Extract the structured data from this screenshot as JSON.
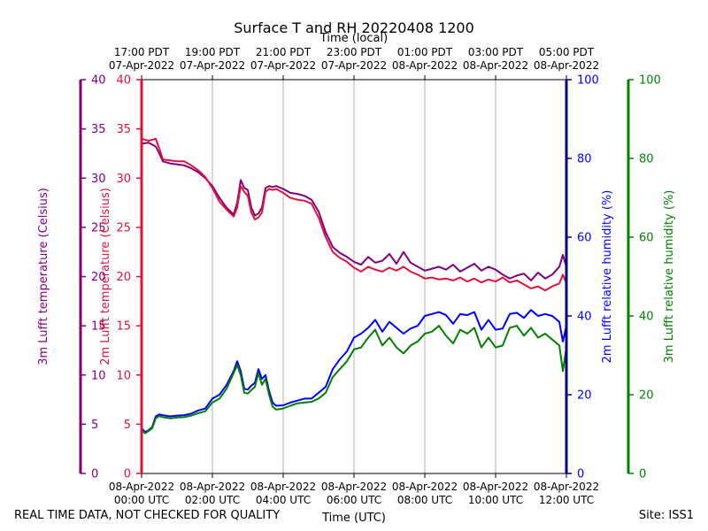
{
  "chart_data": {
    "type": "line",
    "title": "Surface T and RH 20220408 1200",
    "top_axis_label": "Time (local)",
    "xlabel": "Time (UTC)",
    "bottom_ticks": [
      {
        "l1": "08-Apr-2022",
        "l2": "00:00 UTC",
        "h": 0
      },
      {
        "l1": "08-Apr-2022",
        "l2": "02:00 UTC",
        "h": 2
      },
      {
        "l1": "08-Apr-2022",
        "l2": "04:00 UTC",
        "h": 4
      },
      {
        "l1": "08-Apr-2022",
        "l2": "06:00 UTC",
        "h": 6
      },
      {
        "l1": "08-Apr-2022",
        "l2": "08:00 UTC",
        "h": 8
      },
      {
        "l1": "08-Apr-2022",
        "l2": "10:00 UTC",
        "h": 10
      },
      {
        "l1": "08-Apr-2022",
        "l2": "12:00 UTC",
        "h": 12
      }
    ],
    "top_ticks": [
      {
        "l1": "17:00 PDT",
        "l2": "07-Apr-2022",
        "h": 0
      },
      {
        "l1": "19:00 PDT",
        "l2": "07-Apr-2022",
        "h": 2
      },
      {
        "l1": "21:00 PDT",
        "l2": "07-Apr-2022",
        "h": 4
      },
      {
        "l1": "23:00 PDT",
        "l2": "07-Apr-2022",
        "h": 6
      },
      {
        "l1": "01:00 PDT",
        "l2": "08-Apr-2022",
        "h": 8
      },
      {
        "l1": "03:00 PDT",
        "l2": "08-Apr-2022",
        "h": 10
      },
      {
        "l1": "05:00 PDT",
        "l2": "08-Apr-2022",
        "h": 12
      }
    ],
    "xlim": [
      0,
      12
    ],
    "axes": {
      "temp3m": {
        "label": "3m Lufft temperature (Celsius)",
        "color": "#800080",
        "ylim": [
          0,
          40
        ],
        "ticks": [
          0,
          5,
          10,
          15,
          20,
          25,
          30,
          35,
          40
        ]
      },
      "temp2m": {
        "label": "2m Lufft temperature (Celsius)",
        "color": "#dc143c",
        "ylim": [
          0,
          40
        ],
        "ticks": [
          0,
          5,
          10,
          15,
          20,
          25,
          30,
          35,
          40
        ]
      },
      "rh2m": {
        "label": "2m Lufft relative humidity (%)",
        "color": "#0000ff",
        "spine_color": "#000080",
        "ylim": [
          0,
          100
        ],
        "ticks": [
          0,
          20,
          40,
          60,
          80,
          100
        ]
      },
      "rh3m": {
        "label": "3m Lufft relative humidity (%)",
        "color": "#008000",
        "ylim": [
          0,
          100
        ],
        "ticks": [
          0,
          20,
          40,
          60,
          80,
          100
        ]
      }
    },
    "series": [
      {
        "name": "3m Lufft temperature",
        "axis": "temp3m",
        "color": "#800080",
        "x": [
          0,
          0.2,
          0.4,
          0.5,
          0.6,
          0.8,
          1.0,
          1.2,
          1.4,
          1.6,
          1.8,
          2.0,
          2.2,
          2.4,
          2.6,
          2.7,
          2.8,
          2.9,
          3.0,
          3.1,
          3.2,
          3.3,
          3.4,
          3.5,
          3.6,
          3.7,
          3.8,
          4.0,
          4.2,
          4.4,
          4.6,
          4.8,
          5.0,
          5.2,
          5.4,
          5.6,
          5.8,
          6.0,
          6.2,
          6.4,
          6.6,
          6.8,
          7.0,
          7.2,
          7.4,
          7.6,
          7.8,
          8.0,
          8.2,
          8.4,
          8.6,
          8.8,
          9.0,
          9.2,
          9.4,
          9.6,
          9.8,
          10.0,
          10.2,
          10.4,
          10.6,
          10.8,
          11.0,
          11.2,
          11.4,
          11.6,
          11.8,
          11.9,
          12.0
        ],
        "y": [
          33.5,
          33.6,
          33.2,
          32.5,
          31.7,
          31.5,
          31.4,
          31.3,
          31.0,
          30.6,
          30.0,
          29.2,
          28.0,
          27.0,
          26.3,
          27.5,
          29.8,
          29.0,
          28.8,
          27.0,
          26.2,
          26.4,
          27.0,
          29.0,
          29.2,
          29.1,
          29.2,
          28.9,
          28.5,
          28.4,
          28.2,
          27.8,
          26.6,
          24.5,
          23.0,
          22.4,
          22.0,
          21.5,
          21.2,
          22.0,
          21.4,
          21.6,
          22.3,
          21.3,
          22.5,
          21.4,
          21.0,
          20.6,
          20.8,
          21.0,
          20.7,
          21.2,
          20.5,
          20.9,
          21.3,
          20.6,
          21.0,
          20.7,
          20.2,
          19.8,
          20.1,
          20.3,
          19.6,
          20.4,
          19.8,
          20.2,
          21.0,
          22.2,
          21.0
        ]
      },
      {
        "name": "2m Lufft temperature",
        "axis": "temp2m",
        "color": "#dc143c",
        "x": [
          0,
          0.2,
          0.4,
          0.5,
          0.6,
          0.8,
          1.0,
          1.2,
          1.4,
          1.6,
          1.8,
          2.0,
          2.2,
          2.4,
          2.6,
          2.7,
          2.8,
          2.9,
          3.0,
          3.1,
          3.2,
          3.3,
          3.4,
          3.5,
          3.6,
          3.7,
          3.8,
          4.0,
          4.2,
          4.4,
          4.6,
          4.8,
          5.0,
          5.2,
          5.4,
          5.6,
          5.8,
          6.0,
          6.2,
          6.4,
          6.6,
          6.8,
          7.0,
          7.2,
          7.4,
          7.6,
          7.8,
          8.0,
          8.2,
          8.4,
          8.6,
          8.8,
          9.0,
          9.2,
          9.4,
          9.6,
          9.8,
          10.0,
          10.2,
          10.4,
          10.6,
          10.8,
          11.0,
          11.2,
          11.4,
          11.6,
          11.8,
          11.9,
          12.0
        ],
        "y": [
          34.0,
          33.8,
          34.0,
          33.0,
          31.9,
          31.8,
          31.7,
          31.7,
          31.3,
          30.8,
          30.1,
          29.0,
          27.6,
          26.8,
          26.1,
          27.0,
          29.2,
          28.6,
          28.2,
          26.5,
          25.8,
          26.0,
          26.5,
          28.6,
          28.9,
          28.8,
          28.9,
          28.5,
          28.0,
          27.8,
          27.7,
          27.4,
          26.0,
          24.0,
          22.5,
          21.9,
          21.5,
          20.9,
          20.5,
          21.0,
          20.7,
          20.5,
          20.9,
          20.6,
          21.0,
          20.5,
          20.2,
          19.8,
          19.9,
          19.7,
          19.8,
          19.6,
          19.9,
          19.5,
          19.8,
          19.4,
          19.7,
          19.5,
          19.9,
          19.4,
          19.6,
          19.2,
          18.8,
          19.0,
          18.6,
          19.0,
          19.3,
          20.2,
          19.3
        ]
      },
      {
        "name": "2m Lufft relative humidity",
        "axis": "rh2m",
        "color": "#0000ff",
        "x": [
          0,
          0.1,
          0.2,
          0.3,
          0.4,
          0.5,
          0.6,
          0.8,
          1.0,
          1.2,
          1.4,
          1.6,
          1.8,
          2.0,
          2.2,
          2.4,
          2.6,
          2.7,
          2.8,
          2.9,
          3.0,
          3.1,
          3.2,
          3.3,
          3.4,
          3.5,
          3.6,
          3.7,
          3.8,
          4.0,
          4.2,
          4.4,
          4.6,
          4.8,
          5.0,
          5.2,
          5.4,
          5.6,
          5.8,
          6.0,
          6.2,
          6.4,
          6.6,
          6.8,
          7.0,
          7.2,
          7.4,
          7.6,
          7.8,
          8.0,
          8.2,
          8.4,
          8.6,
          8.8,
          9.0,
          9.2,
          9.4,
          9.6,
          9.8,
          10.0,
          10.2,
          10.4,
          10.6,
          10.8,
          11.0,
          11.2,
          11.4,
          11.6,
          11.8,
          11.9,
          12.0
        ],
        "y": [
          11.5,
          10.5,
          11.0,
          11.8,
          14.5,
          15.0,
          14.8,
          14.5,
          14.7,
          14.8,
          15.2,
          16.0,
          16.5,
          19.0,
          20.0,
          22.5,
          26.0,
          28.5,
          26.0,
          21.5,
          21.3,
          22.3,
          23.0,
          26.5,
          24.0,
          25.0,
          21.0,
          18.0,
          17.2,
          17.3,
          18.0,
          18.5,
          19.0,
          19.0,
          20.5,
          22.0,
          26.5,
          29.0,
          31.0,
          34.5,
          35.5,
          37.0,
          39.0,
          36.0,
          38.5,
          37.0,
          35.5,
          36.8,
          37.5,
          40.0,
          40.5,
          41.0,
          40.2,
          38.0,
          40.5,
          40.2,
          41.0,
          36.5,
          39.0,
          36.5,
          36.8,
          40.5,
          40.8,
          39.5,
          41.5,
          40.0,
          40.5,
          40.0,
          38.5,
          33.5,
          37.5
        ]
      },
      {
        "name": "3m Lufft relative humidity",
        "axis": "rh3m",
        "color": "#008000",
        "x": [
          0,
          0.1,
          0.2,
          0.3,
          0.4,
          0.5,
          0.6,
          0.8,
          1.0,
          1.2,
          1.4,
          1.6,
          1.8,
          2.0,
          2.2,
          2.4,
          2.6,
          2.7,
          2.8,
          2.9,
          3.0,
          3.1,
          3.2,
          3.3,
          3.4,
          3.5,
          3.6,
          3.7,
          3.8,
          4.0,
          4.2,
          4.4,
          4.6,
          4.8,
          5.0,
          5.2,
          5.4,
          5.6,
          5.8,
          6.0,
          6.2,
          6.4,
          6.6,
          6.8,
          7.0,
          7.2,
          7.4,
          7.6,
          7.8,
          8.0,
          8.2,
          8.4,
          8.6,
          8.8,
          9.0,
          9.2,
          9.4,
          9.6,
          9.8,
          10.0,
          10.2,
          10.4,
          10.6,
          10.8,
          11.0,
          11.2,
          11.4,
          11.6,
          11.8,
          11.9,
          12.0
        ],
        "y": [
          11.0,
          10.2,
          10.8,
          11.5,
          14.0,
          14.6,
          14.3,
          14.0,
          14.2,
          14.3,
          14.7,
          15.3,
          15.8,
          18.0,
          19.0,
          21.5,
          25.5,
          27.5,
          25.0,
          20.5,
          20.3,
          21.2,
          22.0,
          25.5,
          22.5,
          24.0,
          20.0,
          17.0,
          16.2,
          16.5,
          17.2,
          17.8,
          18.0,
          18.2,
          19.0,
          20.5,
          24.5,
          26.5,
          28.5,
          31.5,
          32.0,
          34.5,
          36.5,
          32.5,
          34.5,
          32.0,
          30.5,
          32.5,
          33.5,
          35.5,
          36.0,
          37.5,
          35.0,
          33.0,
          36.5,
          35.5,
          37.0,
          32.0,
          34.5,
          32.0,
          32.5,
          37.0,
          37.5,
          35.0,
          37.0,
          34.5,
          35.5,
          34.0,
          32.5,
          26.0,
          32.0
        ]
      }
    ]
  },
  "footer": {
    "left": "REAL TIME DATA, NOT CHECKED FOR QUALITY",
    "right": "Site: ISS1"
  }
}
